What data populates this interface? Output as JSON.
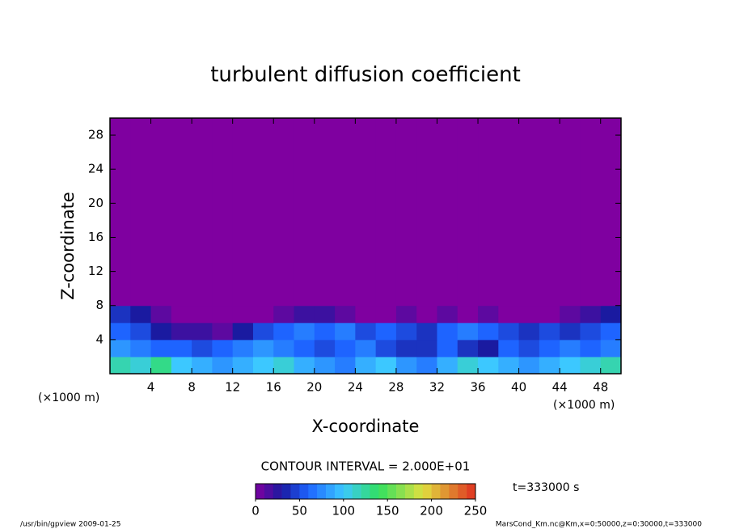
{
  "chart_data": {
    "type": "contour",
    "title": "turbulent diffusion coefficient",
    "x_label": "X-coordinate",
    "y_label": "Z-coordinate",
    "x_unit": "(×1000 m)",
    "y_unit": "(×1000 m)",
    "xlim": [
      0,
      50
    ],
    "ylim": [
      0,
      30
    ],
    "xticks": [
      4,
      8,
      12,
      16,
      20,
      24,
      28,
      32,
      36,
      40,
      44,
      48
    ],
    "yticks": [
      4,
      8,
      12,
      16,
      20,
      24,
      28
    ],
    "xbins": [
      0,
      2,
      4,
      6,
      8,
      10,
      12,
      14,
      16,
      18,
      20,
      22,
      24,
      26,
      28,
      30,
      32,
      34,
      36,
      38,
      40,
      42,
      44,
      46,
      48,
      50
    ],
    "zbins": [
      0,
      2,
      4,
      6,
      8,
      30
    ],
    "values": [
      [
        120,
        110,
        130,
        100,
        90,
        80,
        90,
        100,
        110,
        90,
        80,
        70,
        90,
        100,
        80,
        70,
        90,
        110,
        100,
        90,
        80,
        90,
        100,
        110,
        120
      ],
      [
        80,
        70,
        60,
        60,
        50,
        60,
        70,
        80,
        70,
        60,
        50,
        60,
        70,
        50,
        40,
        40,
        60,
        40,
        30,
        60,
        50,
        60,
        70,
        60,
        70
      ],
      [
        60,
        50,
        30,
        20,
        20,
        10,
        30,
        50,
        60,
        70,
        60,
        70,
        50,
        60,
        50,
        40,
        60,
        70,
        60,
        50,
        40,
        50,
        40,
        50,
        60
      ],
      [
        40,
        30,
        10,
        0,
        0,
        0,
        0,
        0,
        10,
        20,
        20,
        10,
        0,
        0,
        10,
        0,
        10,
        0,
        10,
        0,
        0,
        0,
        10,
        20,
        30
      ],
      [
        0,
        0,
        0,
        0,
        0,
        0,
        0,
        0,
        0,
        0,
        0,
        0,
        0,
        0,
        0,
        0,
        0,
        0,
        0,
        0,
        0,
        0,
        0,
        0,
        0
      ]
    ],
    "palette": [
      [
        0,
        "#7f00a0"
      ],
      [
        30,
        "#1a1aa0"
      ],
      [
        60,
        "#1e64ff"
      ],
      [
        100,
        "#3cc8ff"
      ],
      [
        140,
        "#30e060"
      ],
      [
        190,
        "#e0e040"
      ],
      [
        250,
        "#e03020"
      ]
    ],
    "contour_interval_text": "CONTOUR INTERVAL = 2.000E+01",
    "colorbar_levels": [
      0,
      10,
      20,
      30,
      40,
      50,
      60,
      70,
      80,
      90,
      100,
      110,
      120,
      130,
      140,
      150,
      160,
      170,
      180,
      190,
      200,
      210,
      220,
      230,
      240,
      250
    ],
    "colorbar_ticks": [
      0,
      50,
      100,
      150,
      200,
      250
    ],
    "time_label": "t=333000 s",
    "footer_left": "/usr/bin/gpview  2009-01-25",
    "footer_right": "MarsCond_Km.nc@Km,x=0:50000,z=0:30000,t=333000"
  }
}
